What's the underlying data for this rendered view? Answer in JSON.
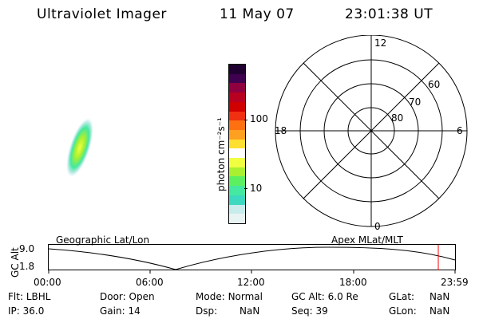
{
  "header": {
    "instrument": "Ultraviolet Imager",
    "date": "11 May 07",
    "time": "23:01:38 UT"
  },
  "colorbar": {
    "label": "photon cm⁻²s⁻¹",
    "tick_100": "100",
    "tick_10": "10",
    "colors": [
      "#e8f4f4",
      "#c8ecec",
      "#3cd8c0",
      "#44e8a0",
      "#5cf060",
      "#a8f030",
      "#f0ff40",
      "#ffffff",
      "#ffe030",
      "#ffa020",
      "#ff7010",
      "#f03010",
      "#d00000",
      "#b80020",
      "#900040",
      "#400050",
      "#200030"
    ]
  },
  "polar_plot": {
    "labels": {
      "top": "12",
      "left": "18",
      "right": "6",
      "bottom": "0",
      "lat_60": "60",
      "lat_70": "70",
      "lat_80": "80"
    }
  },
  "altitude_panel": {
    "y_label": "GC Alt",
    "y_max": "9.0",
    "y_min": "1.8",
    "left_caption": "Geographic Lat/Lon",
    "right_caption": "Apex  MLat/MLT",
    "x_ticks": [
      "00:00",
      "06:00",
      "12:00",
      "18:00",
      "23:59"
    ],
    "current_marker_color": "#ff0000"
  },
  "status": {
    "row1": [
      {
        "label": "Flt:",
        "value": "LBHL"
      },
      {
        "label": "Door:",
        "value": "Open"
      },
      {
        "label": "Mode:",
        "value": "Normal"
      },
      {
        "label": "GC Alt:",
        "value": "6.0 Re"
      },
      {
        "label": "GLat:",
        "value": "NaN"
      }
    ],
    "row2": [
      {
        "label": "IP:",
        "value": "36.0"
      },
      {
        "label": "Gain:",
        "value": "14"
      },
      {
        "label": "Dsp:",
        "value": "NaN"
      },
      {
        "label": "Seq:",
        "value": "39"
      },
      {
        "label": "GLon:",
        "value": "NaN"
      }
    ]
  }
}
